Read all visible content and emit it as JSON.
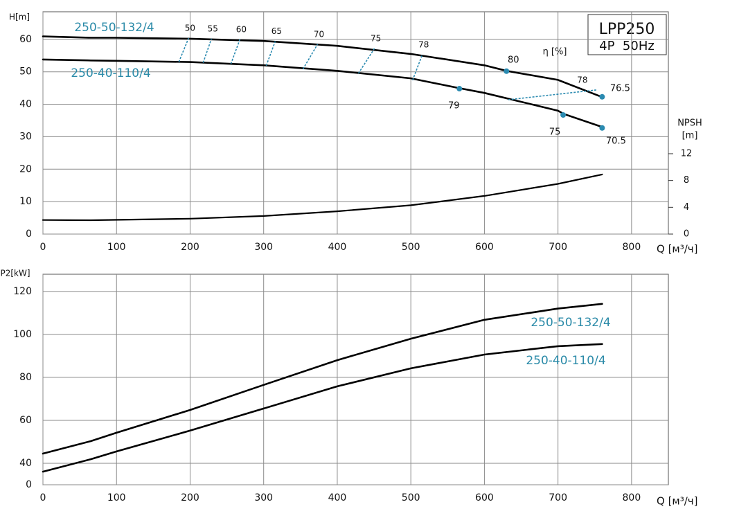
{
  "chart_data": [
    {
      "type": "line",
      "title": "LPP250",
      "subtitle": "4P  50Hz",
      "x_label": "Q [м³/ч]",
      "y_label": "H[m]",
      "y2_label": "NPSH",
      "y2_unit": "[m]",
      "xlim": [
        0,
        850
      ],
      "xticks": [
        0,
        100,
        200,
        300,
        400,
        500,
        600,
        700,
        800
      ],
      "ylim": [
        0,
        68.5
      ],
      "yticks": [
        0,
        10,
        20,
        30,
        40,
        50,
        60
      ],
      "y2lim": [
        0,
        33.2
      ],
      "y2ticks": [
        0,
        4,
        8,
        12
      ],
      "grid": true,
      "series": [
        {
          "name": "250-50-132/4",
          "color": "#000000",
          "name_color": "#2a8aa8",
          "x": [
            0,
            65,
            100,
            200,
            300,
            400,
            500,
            600,
            630,
            700,
            760
          ],
          "values": [
            60.9,
            60.5,
            60.5,
            60.2,
            59.5,
            58,
            55.5,
            52,
            50.3,
            47.5,
            42.2
          ]
        },
        {
          "name": "250-40-110/4",
          "color": "#000000",
          "name_color": "#2a8aa8",
          "x": [
            0,
            65,
            100,
            200,
            300,
            400,
            500,
            565,
            600,
            700,
            708,
            760
          ],
          "values": [
            53.8,
            53.5,
            53.4,
            53,
            52,
            50.3,
            48,
            45,
            43.5,
            38,
            37,
            33
          ]
        },
        {
          "axis": "y2",
          "color": "#000000",
          "x": [
            0,
            65,
            200,
            300,
            400,
            500,
            600,
            700,
            760
          ],
          "values": [
            2.1,
            2.07,
            2.3,
            2.7,
            3.4,
            4.3,
            5.7,
            7.5,
            8.9
          ]
        }
      ],
      "efficiency_color": "#2a8ab0",
      "efficiency_unit_label": "η [%]",
      "iso_efficiency_lines": [
        {
          "label": "50",
          "x": [
            184.7,
            198
          ],
          "y": [
            53,
            60.4
          ]
        },
        {
          "label": "55",
          "x": [
            217.7,
            229
          ],
          "y": [
            52.8,
            60.2
          ]
        },
        {
          "label": "60",
          "x": [
            255.4,
            267.7
          ],
          "y": [
            52.4,
            60
          ]
        },
        {
          "label": "65",
          "x": [
            303.5,
            315.7
          ],
          "y": [
            51.9,
            59.4
          ]
        },
        {
          "label": "70",
          "x": [
            353.4,
            373.2
          ],
          "y": [
            50.8,
            58.5
          ]
        },
        {
          "label": "75",
          "x": [
            428.8,
            450.5
          ],
          "y": [
            49.5,
            57.2
          ]
        },
        {
          "label": "78",
          "x": [
            502.4,
            515.6
          ],
          "y": [
            47.4,
            55.3
          ]
        },
        {
          "label": "78",
          "x": [
            632.4,
            752
          ],
          "y": [
            41.4,
            44.4
          ]
        }
      ],
      "efficiency_points": {
        "labels": [
          "80",
          "76.5",
          "79",
          "75",
          "70.5"
        ],
        "x": [
          630,
          760,
          566,
          707,
          760
        ],
        "values": [
          50.2,
          42.3,
          44.8,
          36.7,
          32.7
        ]
      }
    },
    {
      "type": "line",
      "x_label": "Q [м³/ч]",
      "y_label": "P2[kW]",
      "xlim": [
        0,
        850
      ],
      "xticks": [
        0,
        100,
        200,
        300,
        400,
        500,
        600,
        700,
        800
      ],
      "ylim": [
        30,
        128
      ],
      "yticks": [
        {
          "value": 30,
          "label": "0"
        },
        40,
        60,
        80,
        100,
        120
      ],
      "grid": true,
      "series": [
        {
          "name": "250-50-132/4",
          "color": "#000000",
          "name_color": "#2a8aa8",
          "x": [
            0,
            65,
            100,
            200,
            300,
            400,
            500,
            600,
            700,
            760
          ],
          "values": [
            44.5,
            50.3,
            54.2,
            64.8,
            76.5,
            88,
            98,
            106.8,
            112,
            114.2
          ]
        },
        {
          "name": "250-40-110/4",
          "color": "#000000",
          "name_color": "#2a8aa8",
          "x": [
            0,
            65,
            100,
            200,
            300,
            400,
            500,
            600,
            700,
            760
          ],
          "values": [
            36.1,
            41.9,
            45.5,
            55.2,
            65.5,
            75.8,
            84.2,
            90.6,
            94.5,
            95.5
          ]
        }
      ]
    }
  ]
}
